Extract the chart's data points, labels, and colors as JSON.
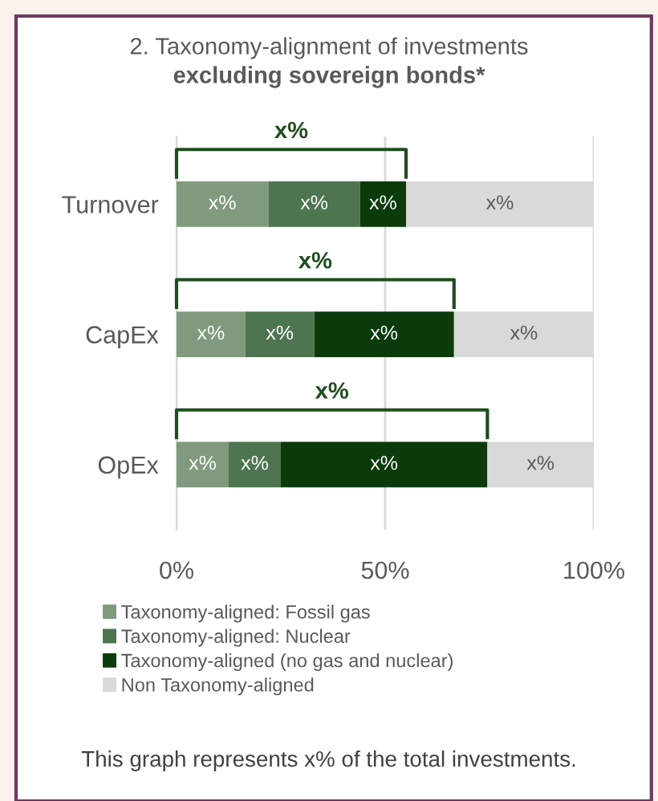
{
  "chart_data": {
    "type": "bar",
    "orientation": "horizontal",
    "stacked": true,
    "title": "2. Taxonomy-alignment of investments",
    "subtitle": "excluding sovereign bonds*",
    "categories": [
      "Turnover",
      "CapEx",
      "OpEx"
    ],
    "series": [
      {
        "name": "Taxonomy-aligned: Fossil gas",
        "color": "#7f9a7c",
        "values": [
          22,
          16.5,
          12.5
        ],
        "value_labels": [
          "x%",
          "x%",
          "x%"
        ]
      },
      {
        "name": "Taxonomy-aligned: Nuclear",
        "color": "#4d7550",
        "values": [
          22,
          16.5,
          12.5
        ],
        "value_labels": [
          "x%",
          "x%",
          "x%"
        ]
      },
      {
        "name": "Taxonomy-aligned (no gas and nuclear)",
        "color": "#0b3b0b",
        "values": [
          11,
          33.5,
          49.5
        ],
        "value_labels": [
          "x%",
          "x%",
          "x%"
        ]
      },
      {
        "name": "Non Taxonomy-aligned",
        "color": "#d9d9d9",
        "values": [
          45,
          33.5,
          25.5
        ],
        "value_labels": [
          "x%",
          "x%",
          "x%"
        ]
      }
    ],
    "xlim": [
      0,
      100
    ],
    "xticks": [
      {
        "value": 0,
        "label": "0%"
      },
      {
        "value": 50,
        "label": "50%"
      },
      {
        "value": 100,
        "label": "100%"
      }
    ],
    "grid": "x",
    "legend": "bottom",
    "annotations": [
      "x%",
      "x%",
      "x%",
      "This graph represents x% of the total investments."
    ]
  }
}
